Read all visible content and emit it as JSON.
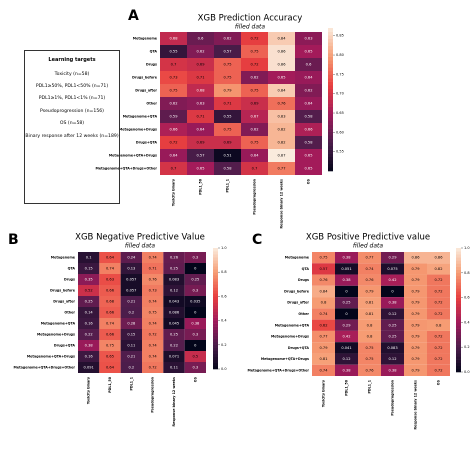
{
  "chart_data": [
    {
      "type": "heatmap",
      "panel": "A",
      "title": "XGB Prediction Accuracy",
      "subtitle": "filled data",
      "colormap": "rocket",
      "columns": [
        "Toxicity binary",
        "PDL1_50",
        "PDL1_1",
        "Pseudoprogression",
        "Response binary 12 weeks",
        "OS"
      ],
      "rows": [
        "Metagenome",
        "QTA",
        "Drugs",
        "Drugs_before",
        "Drugs_after",
        "Other",
        "Metagenome+QTA",
        "Metagenome+Drugs",
        "Drugs+QTA",
        "Metagenome+QTA+Drugs",
        "Metagenome+QTA+Drugs+Other"
      ],
      "values": [
        [
          0.68,
          0.6,
          0.62,
          0.72,
          0.84,
          0.63
        ],
        [
          0.55,
          0.62,
          0.57,
          0.75,
          0.86,
          0.65
        ],
        [
          0.7,
          0.69,
          0.75,
          0.72,
          0.86,
          0.6
        ],
        [
          0.73,
          0.71,
          0.75,
          0.62,
          0.65,
          0.64
        ],
        [
          0.75,
          0.68,
          0.79,
          0.75,
          0.84,
          0.62
        ],
        [
          0.62,
          0.63,
          0.71,
          0.69,
          0.76,
          0.64
        ],
        [
          0.59,
          0.71,
          0.55,
          0.67,
          0.83,
          0.58
        ],
        [
          0.66,
          0.64,
          0.75,
          0.62,
          0.82,
          0.66
        ],
        [
          0.72,
          0.69,
          0.69,
          0.75,
          0.82,
          0.58
        ],
        [
          0.64,
          0.57,
          0.51,
          0.64,
          0.87,
          0.65
        ],
        [
          0.7,
          0.65,
          0.58,
          0.7,
          0.77,
          0.65
        ]
      ],
      "clim": [
        0.5,
        0.87
      ],
      "cticks": [
        0.55,
        {
          "value": 0.6,
          "label": "0.60"
        },
        0.65,
        {
          "value": 0.7,
          "label": "0.70"
        },
        0.75,
        {
          "value": 0.8,
          "label": "0.80"
        },
        0.85
      ]
    },
    {
      "type": "heatmap",
      "panel": "B",
      "title": "XGB Negative Predictive Value",
      "subtitle": "filled data",
      "colormap": "rocket",
      "columns": [
        "Toxicity binary",
        "PDL1_50",
        "PDL1_1",
        "Pseudoprogression",
        "Response binary 12 weeks",
        "OS"
      ],
      "rows": [
        "Metagenome",
        "QTA",
        "Drugs",
        "Drugs_before",
        "Drugs_after",
        "Other",
        "Metagenome+QTA",
        "Metagenome+Drugs",
        "Drugs+QTA",
        "Metagenome+QTA+Drugs",
        "Metagenome+QTA+Drugs+Other"
      ],
      "values": [
        [
          0.1,
          0.64,
          0.24,
          0.74,
          0.26,
          0.3
        ],
        [
          0.15,
          0.74,
          0.13,
          0.71,
          0.25,
          0
        ],
        [
          0.35,
          0.63,
          0.057,
          0.76,
          0.083,
          0.25
        ],
        [
          0.52,
          0.66,
          0.057,
          0.73,
          0.12,
          0.3
        ],
        [
          0.25,
          0.68,
          0.21,
          0.74,
          0.043,
          0.035
        ],
        [
          0.14,
          0.66,
          0.2,
          0.75,
          0.086,
          0
        ],
        [
          0.16,
          0.74,
          0.28,
          0.74,
          0.045,
          0.38
        ],
        [
          0.22,
          0.66,
          0.15,
          0.72,
          0.25,
          0.3
        ],
        [
          0.38,
          0.75,
          0.11,
          0.74,
          0.22,
          0
        ],
        [
          0.16,
          0.65,
          0.21,
          0.74,
          0.071,
          0.5
        ],
        [
          0.091,
          0.64,
          0.2,
          0.72,
          0.11,
          0.3
        ]
      ],
      "clim": [
        0,
        1
      ],
      "cticks": [
        {
          "value": 0,
          "label": "0.0"
        },
        0.2,
        0.4,
        0.6,
        0.8,
        {
          "value": 1,
          "label": "1.0"
        }
      ]
    },
    {
      "type": "heatmap",
      "panel": "C",
      "title": "XGB Positive Predictive value",
      "subtitle": "filled data",
      "colormap": "rocket",
      "columns": [
        "Toxicity binary",
        "PDL1_50",
        "PDL1_1",
        "Pseudoprogression",
        "Response binary 12 weeks",
        "OS"
      ],
      "rows": [
        "Metagenome",
        "QTA",
        "Drugs",
        "Drugs_before",
        "Drugs_after",
        "Other",
        "Metagenome+QTA",
        "Metagenome+Drugs",
        "Drugs+QTA",
        "Metagenome+QTA+Drugs",
        "Metagenome+QTA+Drugs+Other"
      ],
      "values": [
        [
          0.75,
          0.38,
          0.77,
          0.29,
          0.86,
          0.86
        ],
        [
          0.57,
          0.051,
          0.74,
          0.075,
          0.79,
          0.82
        ],
        [
          0.76,
          0.38,
          0.76,
          0.42,
          0.79,
          0.72
        ],
        [
          0.84,
          0,
          0.79,
          0,
          0.79,
          0.72
        ],
        [
          0.8,
          0.25,
          0.81,
          0.38,
          0.79,
          0.72
        ],
        [
          0.74,
          0,
          0.81,
          0.12,
          0.79,
          0.72
        ],
        [
          0.62,
          0.29,
          0.8,
          0.25,
          0.79,
          0.8
        ],
        [
          0.77,
          0.42,
          0.8,
          0.25,
          0.79,
          0.72
        ],
        [
          0.79,
          0.041,
          0.75,
          0.083,
          0.79,
          0.72
        ],
        [
          0.81,
          0.12,
          0.75,
          0.12,
          0.79,
          0.72
        ],
        [
          0.74,
          0.38,
          0.76,
          0.38,
          0.79,
          0.72
        ]
      ],
      "clim": [
        0,
        1
      ],
      "cticks": [
        {
          "value": 0,
          "label": "0.0"
        },
        0.2,
        0.4,
        0.6,
        0.8,
        {
          "value": 1,
          "label": "1.0"
        }
      ]
    }
  ],
  "legend_box": {
    "title": "Learning targets",
    "items": [
      "Toxicity (n=58)",
      "PDL1≥50%, PDL1<50% (n=71)",
      "PDL1≥1%, PDL1<1% (n=71)",
      "Pseudoprogression (n=156)",
      "OS (n=58)",
      "Binary response after 12 weeks (n=189)"
    ]
  }
}
